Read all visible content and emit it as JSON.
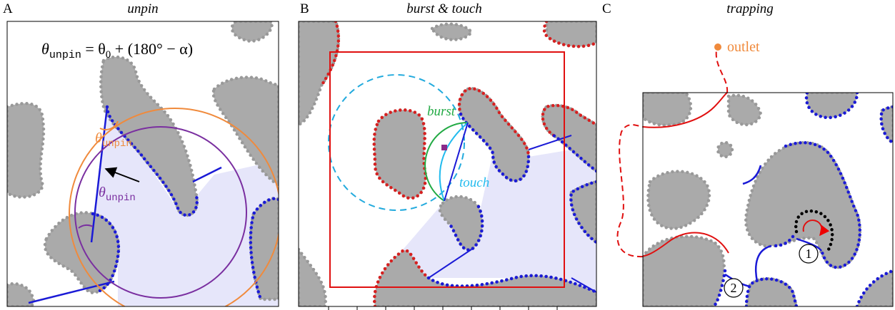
{
  "panels": [
    {
      "label": "A",
      "title": "unpin",
      "formula": [
        {
          "text": "θ"
        },
        {
          "text": "unpin"
        },
        {
          "text": " = θ"
        },
        {
          "text": "0"
        },
        {
          "text": " + (180° − α)"
        }
      ],
      "angle_labels": [
        {
          "symbol": "θ",
          "subscript": "unpin"
        },
        {
          "symbol": "θ",
          "subscript": "unpin"
        }
      ]
    },
    {
      "label": "B",
      "title": "burst & touch",
      "annotations": [
        "burst",
        "touch"
      ]
    },
    {
      "label": "C",
      "title": "trapping",
      "annotations": [
        "outlet"
      ],
      "markers": [
        "1",
        "2"
      ]
    }
  ]
}
